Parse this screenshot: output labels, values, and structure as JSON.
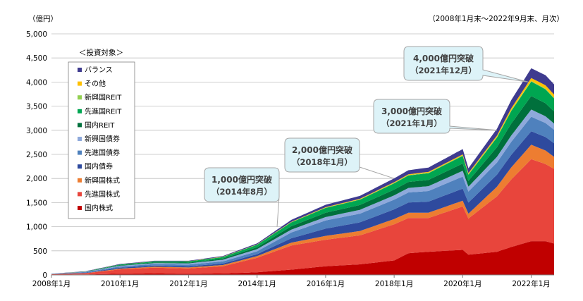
{
  "chart_data": {
    "type": "area",
    "stacked": true,
    "y_unit_label": "（億円）",
    "period_note": "（2008年1月末～2022年9月末、月次）",
    "ylim": [
      0,
      5000
    ],
    "y_ticks": [
      0,
      500,
      1000,
      1500,
      2000,
      2500,
      3000,
      3500,
      4000,
      4500,
      5000
    ],
    "y_tick_labels": [
      "0",
      "500",
      "1,000",
      "1,500",
      "2,000",
      "2,500",
      "3,000",
      "3,500",
      "4,000",
      "4,500",
      "5,000"
    ],
    "x_range": [
      "2008-01",
      "2022-09"
    ],
    "x_tick_labels": [
      {
        "date": "2008-01",
        "label": "2008年1月"
      },
      {
        "date": "2010-01",
        "label": "2010年1月"
      },
      {
        "date": "2012-01",
        "label": "2012年1月"
      },
      {
        "date": "2014-01",
        "label": "2014年1月"
      },
      {
        "date": "2016-01",
        "label": "2016年1月"
      },
      {
        "date": "2018-01",
        "label": "2018年1月"
      },
      {
        "date": "2020-01",
        "label": "2020年1月"
      },
      {
        "date": "2022-01",
        "label": "2022年1月"
      }
    ],
    "legend_title": "＜投資対象＞",
    "legend_position": "upper-left",
    "series": [
      {
        "name": "国内株式",
        "color": "#C00000",
        "points": [
          [
            "2008-01",
            5
          ],
          [
            "2009-01",
            10
          ],
          [
            "2010-01",
            25
          ],
          [
            "2011-01",
            30
          ],
          [
            "2012-01",
            25
          ],
          [
            "2013-01",
            30
          ],
          [
            "2014-01",
            55
          ],
          [
            "2015-01",
            110
          ],
          [
            "2016-01",
            180
          ],
          [
            "2017-01",
            220
          ],
          [
            "2018-01",
            300
          ],
          [
            "2018-06",
            450
          ],
          [
            "2019-01",
            480
          ],
          [
            "2020-01",
            520
          ],
          [
            "2020-03",
            420
          ],
          [
            "2021-01",
            480
          ],
          [
            "2021-06",
            580
          ],
          [
            "2022-01",
            700
          ],
          [
            "2022-06",
            700
          ],
          [
            "2022-09",
            650
          ]
        ]
      },
      {
        "name": "先進国株式",
        "color": "#E8453C",
        "points": [
          [
            "2008-01",
            10
          ],
          [
            "2009-01",
            25
          ],
          [
            "2010-01",
            90
          ],
          [
            "2011-01",
            120
          ],
          [
            "2012-01",
            110
          ],
          [
            "2013-01",
            150
          ],
          [
            "2014-01",
            300
          ],
          [
            "2015-01",
            500
          ],
          [
            "2016-01",
            550
          ],
          [
            "2017-01",
            600
          ],
          [
            "2018-01",
            750
          ],
          [
            "2019-01",
            700
          ],
          [
            "2020-01",
            900
          ],
          [
            "2020-03",
            750
          ],
          [
            "2021-01",
            1150
          ],
          [
            "2021-06",
            1400
          ],
          [
            "2022-01",
            1700
          ],
          [
            "2022-06",
            1600
          ],
          [
            "2022-09",
            1550
          ]
        ]
      },
      {
        "name": "新興国株式",
        "color": "#ED7D31",
        "points": [
          [
            "2008-01",
            0
          ],
          [
            "2009-01",
            3
          ],
          [
            "2010-01",
            15
          ],
          [
            "2011-01",
            20
          ],
          [
            "2012-01",
            20
          ],
          [
            "2013-01",
            25
          ],
          [
            "2014-01",
            35
          ],
          [
            "2015-01",
            60
          ],
          [
            "2016-01",
            80
          ],
          [
            "2017-01",
            90
          ],
          [
            "2018-01",
            110
          ],
          [
            "2019-01",
            110
          ],
          [
            "2020-01",
            120
          ],
          [
            "2020-03",
            100
          ],
          [
            "2021-01",
            200
          ],
          [
            "2021-06",
            250
          ],
          [
            "2022-01",
            300
          ],
          [
            "2022-06",
            280
          ],
          [
            "2022-09",
            250
          ]
        ]
      },
      {
        "name": "国内債券",
        "color": "#2E4A9E",
        "points": [
          [
            "2008-01",
            3
          ],
          [
            "2009-01",
            8
          ],
          [
            "2010-01",
            20
          ],
          [
            "2011-01",
            25
          ],
          [
            "2012-01",
            25
          ],
          [
            "2013-01",
            30
          ],
          [
            "2014-01",
            40
          ],
          [
            "2015-01",
            90
          ],
          [
            "2016-01",
            150
          ],
          [
            "2017-01",
            180
          ],
          [
            "2018-01",
            200
          ],
          [
            "2019-01",
            230
          ],
          [
            "2020-01",
            250
          ],
          [
            "2020-03",
            230
          ],
          [
            "2021-01",
            250
          ],
          [
            "2021-06",
            260
          ],
          [
            "2022-01",
            280
          ],
          [
            "2022-06",
            280
          ],
          [
            "2022-09",
            280
          ]
        ]
      },
      {
        "name": "先進国債券",
        "color": "#4F81BD",
        "points": [
          [
            "2008-01",
            5
          ],
          [
            "2009-01",
            15
          ],
          [
            "2010-01",
            25
          ],
          [
            "2011-01",
            30
          ],
          [
            "2012-01",
            35
          ],
          [
            "2013-01",
            45
          ],
          [
            "2014-01",
            60
          ],
          [
            "2015-01",
            120
          ],
          [
            "2016-01",
            170
          ],
          [
            "2017-01",
            180
          ],
          [
            "2018-01",
            200
          ],
          [
            "2019-01",
            220
          ],
          [
            "2020-01",
            250
          ],
          [
            "2020-03",
            230
          ],
          [
            "2021-01",
            250
          ],
          [
            "2021-06",
            270
          ],
          [
            "2022-01",
            300
          ],
          [
            "2022-06",
            290
          ],
          [
            "2022-09",
            280
          ]
        ]
      },
      {
        "name": "新興国債券",
        "color": "#8EA9DB",
        "points": [
          [
            "2008-01",
            0
          ],
          [
            "2009-01",
            5
          ],
          [
            "2010-01",
            15
          ],
          [
            "2011-01",
            20
          ],
          [
            "2012-01",
            25
          ],
          [
            "2013-01",
            35
          ],
          [
            "2014-01",
            45
          ],
          [
            "2015-01",
            60
          ],
          [
            "2016-01",
            70
          ],
          [
            "2017-01",
            80
          ],
          [
            "2018-01",
            90
          ],
          [
            "2019-01",
            100
          ],
          [
            "2020-01",
            120
          ],
          [
            "2020-03",
            100
          ],
          [
            "2021-01",
            120
          ],
          [
            "2021-06",
            130
          ],
          [
            "2022-01",
            150
          ],
          [
            "2022-06",
            140
          ],
          [
            "2022-09",
            130
          ]
        ]
      },
      {
        "name": "国内REIT",
        "color": "#00703C",
        "points": [
          [
            "2008-01",
            0
          ],
          [
            "2009-01",
            3
          ],
          [
            "2010-01",
            10
          ],
          [
            "2011-01",
            15
          ],
          [
            "2012-01",
            15
          ],
          [
            "2013-01",
            25
          ],
          [
            "2014-01",
            40
          ],
          [
            "2015-01",
            70
          ],
          [
            "2016-01",
            90
          ],
          [
            "2017-01",
            100
          ],
          [
            "2018-01",
            120
          ],
          [
            "2019-01",
            130
          ],
          [
            "2020-01",
            150
          ],
          [
            "2020-03",
            120
          ],
          [
            "2021-01",
            200
          ],
          [
            "2021-06",
            250
          ],
          [
            "2022-01",
            280
          ],
          [
            "2022-06",
            270
          ],
          [
            "2022-09",
            250
          ]
        ]
      },
      {
        "name": "先進国REIT",
        "color": "#00A651",
        "points": [
          [
            "2008-01",
            0
          ],
          [
            "2009-01",
            3
          ],
          [
            "2010-01",
            15
          ],
          [
            "2011-01",
            20
          ],
          [
            "2012-01",
            25
          ],
          [
            "2013-01",
            30
          ],
          [
            "2014-01",
            50
          ],
          [
            "2015-01",
            80
          ],
          [
            "2016-01",
            100
          ],
          [
            "2017-01",
            110
          ],
          [
            "2018-01",
            130
          ],
          [
            "2019-01",
            140
          ],
          [
            "2020-01",
            160
          ],
          [
            "2020-03",
            130
          ],
          [
            "2021-01",
            200
          ],
          [
            "2021-06",
            260
          ],
          [
            "2022-01",
            300
          ],
          [
            "2022-06",
            290
          ],
          [
            "2022-09",
            270
          ]
        ]
      },
      {
        "name": "新興国REIT",
        "color": "#92D050",
        "points": [
          [
            "2008-01",
            0
          ],
          [
            "2010-01",
            0
          ],
          [
            "2014-01",
            3
          ],
          [
            "2016-01",
            5
          ],
          [
            "2018-01",
            8
          ],
          [
            "2020-01",
            10
          ],
          [
            "2022-01",
            15
          ],
          [
            "2022-09",
            12
          ]
        ]
      },
      {
        "name": "その他",
        "color": "#FFC000",
        "points": [
          [
            "2008-01",
            0
          ],
          [
            "2010-01",
            2
          ],
          [
            "2012-01",
            3
          ],
          [
            "2014-01",
            5
          ],
          [
            "2016-01",
            10
          ],
          [
            "2018-01",
            15
          ],
          [
            "2020-01",
            20
          ],
          [
            "2021-01",
            30
          ],
          [
            "2022-01",
            60
          ],
          [
            "2022-06",
            70
          ],
          [
            "2022-09",
            70
          ]
        ]
      },
      {
        "name": "バランス",
        "color": "#3F3B8F",
        "points": [
          [
            "2008-01",
            2
          ],
          [
            "2009-01",
            5
          ],
          [
            "2010-01",
            10
          ],
          [
            "2011-01",
            10
          ],
          [
            "2012-01",
            10
          ],
          [
            "2013-01",
            15
          ],
          [
            "2014-01",
            20
          ],
          [
            "2015-01",
            40
          ],
          [
            "2016-01",
            50
          ],
          [
            "2017-01",
            60
          ],
          [
            "2018-01",
            80
          ],
          [
            "2019-01",
            90
          ],
          [
            "2020-01",
            110
          ],
          [
            "2020-03",
            100
          ],
          [
            "2021-01",
            140
          ],
          [
            "2021-06",
            170
          ],
          [
            "2022-01",
            200
          ],
          [
            "2022-06",
            210
          ],
          [
            "2022-09",
            210
          ]
        ]
      }
    ],
    "annotations": [
      {
        "line1": "1,000億円突破",
        "line2": "（2014年8月）",
        "date": "2014-08",
        "value": 1000
      },
      {
        "line1": "2,000億円突破",
        "line2": "（2018年1月）",
        "date": "2018-01",
        "value": 2000
      },
      {
        "line1": "3,000億円突破",
        "line2": "（2021年1月）",
        "date": "2021-01",
        "value": 3000
      },
      {
        "line1": "4,000億円突破",
        "line2": "（2021年12月）",
        "date": "2021-12",
        "value": 4000
      }
    ],
    "colors": {
      "grid": "#BFBFBF",
      "callout_fill": "#DDF3F8",
      "callout_stroke": "#A6A6A6",
      "text": "#000000"
    }
  }
}
